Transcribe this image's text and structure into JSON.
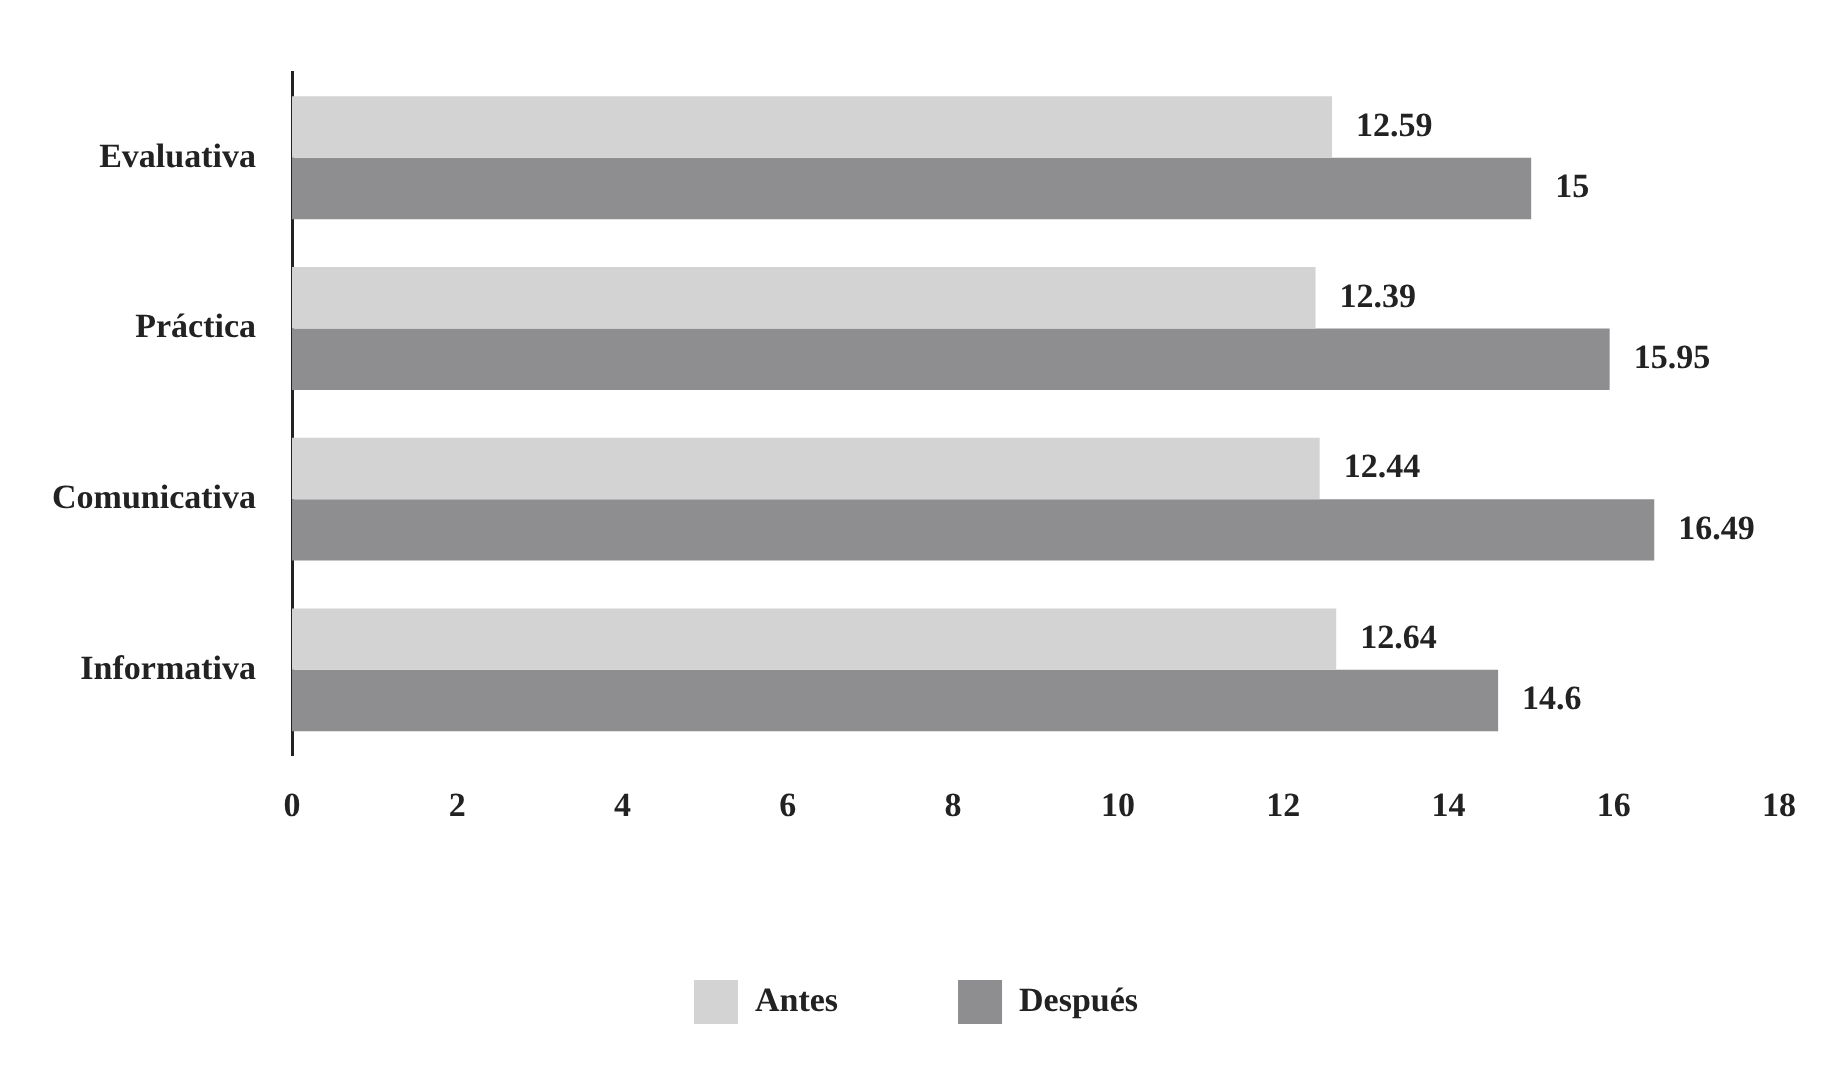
{
  "chart_data": {
    "type": "bar",
    "orientation": "horizontal",
    "categories": [
      "Evaluativa",
      "Práctica",
      "Comunicativa",
      "Informativa"
    ],
    "series": [
      {
        "name": "Antes",
        "color": "#d3d3d3",
        "values": [
          12.59,
          12.39,
          12.44,
          12.64
        ]
      },
      {
        "name": "Después",
        "color": "#8e8e91",
        "values": [
          15,
          15.95,
          16.49,
          14.6
        ]
      }
    ],
    "xlim": [
      0,
      18
    ],
    "xticks": [
      0,
      2,
      4,
      6,
      8,
      10,
      12,
      14,
      16,
      18
    ],
    "grid": false,
    "legend": "bottom",
    "data_labels": true
  }
}
